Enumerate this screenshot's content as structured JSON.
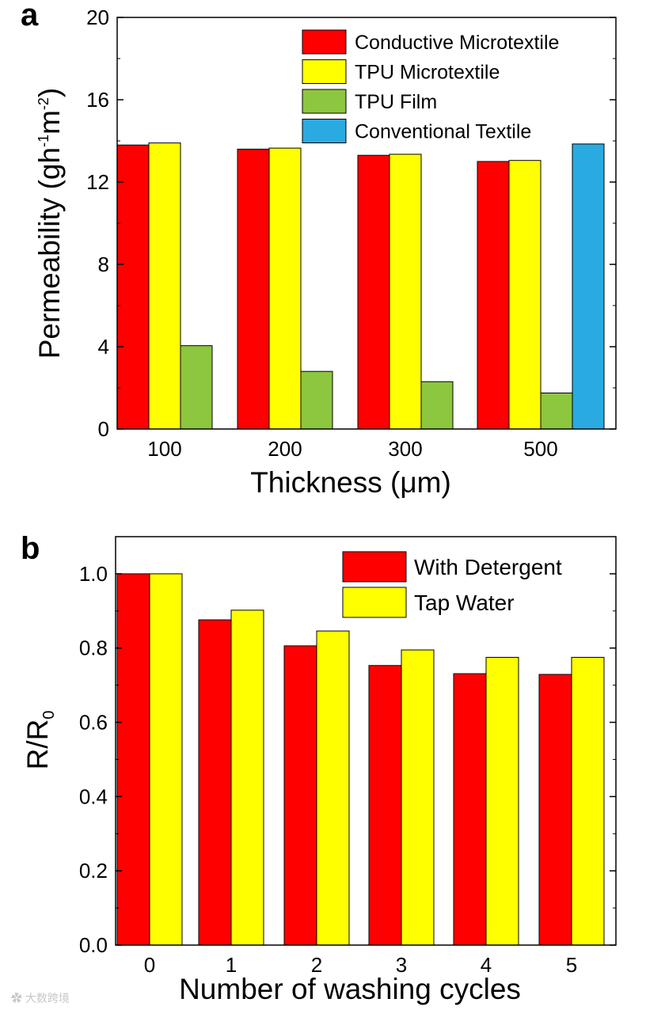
{
  "watermark": "大数跨境",
  "chart_data": [
    {
      "panel": "a",
      "type": "bar",
      "xlabel": "Thickness (μm)",
      "ylabel": "Permeability (gh",
      "ylabel_sup1": "-1",
      "ylabel_mid": "m",
      "ylabel_sup2": "-2",
      "ylabel_end": ")",
      "categories": [
        "100",
        "200",
        "300",
        "500"
      ],
      "ylim": [
        0,
        20
      ],
      "yticks": [
        "0",
        "4",
        "8",
        "12",
        "16",
        "20"
      ],
      "legend_position": "top-right",
      "series": [
        {
          "name": "Conductive Microtextile",
          "color": "#ff0000",
          "values": [
            13.8,
            13.6,
            13.3,
            13.0
          ]
        },
        {
          "name": "TPU Microtextile",
          "color": "#ffff00",
          "values": [
            13.9,
            13.65,
            13.35,
            13.05
          ]
        },
        {
          "name": "TPU Film",
          "color": "#8dc63f",
          "values": [
            4.05,
            2.8,
            2.3,
            1.75
          ]
        },
        {
          "name": "Conventional Textile",
          "color": "#29abe2",
          "values": [
            null,
            null,
            null,
            13.85
          ]
        }
      ]
    },
    {
      "panel": "b",
      "type": "bar",
      "xlabel": "Number of washing cycles",
      "ylabel": "R/R",
      "ylabel_sub": "0",
      "categories": [
        "0",
        "1",
        "2",
        "3",
        "4",
        "5"
      ],
      "ylim": [
        0,
        1.1
      ],
      "yticks": [
        "0.0",
        "0.2",
        "0.4",
        "0.6",
        "0.8",
        "1.0"
      ],
      "legend_position": "top-right",
      "series": [
        {
          "name": "With Detergent",
          "color": "#ff0000",
          "values": [
            1.0,
            0.876,
            0.806,
            0.753,
            0.731,
            0.729
          ]
        },
        {
          "name": "Tap Water",
          "color": "#ffff00",
          "values": [
            1.0,
            0.902,
            0.846,
            0.795,
            0.775,
            0.775
          ]
        }
      ]
    }
  ]
}
